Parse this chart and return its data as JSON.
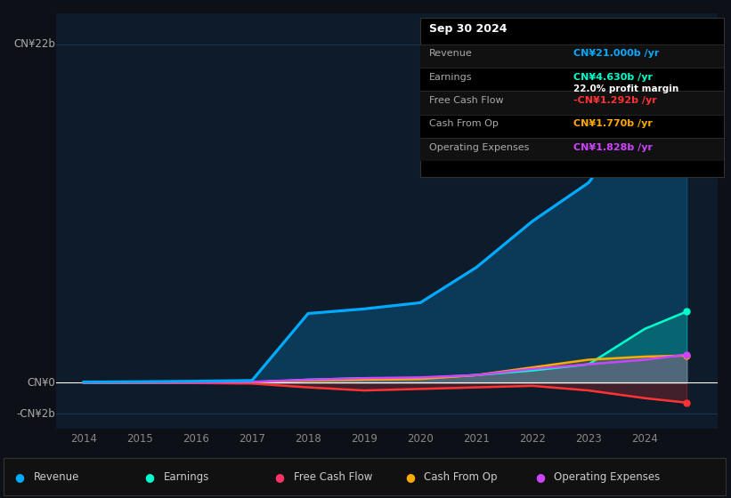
{
  "bg_color": "#0d1117",
  "plot_bg_color": "#0d1b2a",
  "years": [
    2014,
    2015,
    2016,
    2017,
    2018,
    2019,
    2020,
    2021,
    2022,
    2023,
    2024,
    2024.75
  ],
  "revenue": [
    0.05,
    0.07,
    0.1,
    0.15,
    4.5,
    4.8,
    5.2,
    7.5,
    10.5,
    13.0,
    18.0,
    21.0
  ],
  "earnings": [
    0.01,
    0.01,
    0.02,
    0.03,
    0.2,
    0.3,
    0.3,
    0.5,
    0.8,
    1.2,
    3.5,
    4.63
  ],
  "free_cash_flow": [
    0.0,
    -0.01,
    -0.02,
    -0.05,
    -0.3,
    -0.5,
    -0.4,
    -0.3,
    -0.2,
    -0.5,
    -1.0,
    -1.292
  ],
  "cash_from_op": [
    0.01,
    0.02,
    0.03,
    0.05,
    0.15,
    0.2,
    0.25,
    0.5,
    1.0,
    1.5,
    1.7,
    1.77
  ],
  "operating_exp": [
    0.01,
    0.02,
    0.03,
    0.06,
    0.2,
    0.3,
    0.35,
    0.5,
    0.9,
    1.2,
    1.5,
    1.828
  ],
  "revenue_color": "#00aaff",
  "earnings_color": "#00ffcc",
  "fcf_color": "#ff3333",
  "cfo_color": "#ffaa00",
  "opex_color": "#cc44ff",
  "ylim": [
    -3.0,
    24.0
  ],
  "xlim": [
    2013.5,
    2025.3
  ],
  "grid_color": "#1e3a5f",
  "zero_line_color": "#ffffff",
  "y_labels": [
    {
      "label": "CN¥22b",
      "yval": 22
    },
    {
      "label": "CN¥0",
      "yval": 0
    },
    {
      "label": "-CN¥2b",
      "yval": -2
    }
  ],
  "xtick_years": [
    2014,
    2015,
    2016,
    2017,
    2018,
    2019,
    2020,
    2021,
    2022,
    2023,
    2024
  ],
  "info_box": {
    "title": "Sep 30 2024",
    "rows": [
      {
        "label": "Revenue",
        "value": "CN¥21.000b /yr",
        "value_color": "#00aaff",
        "margin": null
      },
      {
        "label": "Earnings",
        "value": "CN¥4.630b /yr",
        "value_color": "#00ffcc",
        "margin": "22.0% profit margin"
      },
      {
        "label": "Free Cash Flow",
        "value": "-CN¥1.292b /yr",
        "value_color": "#ff3333",
        "margin": null
      },
      {
        "label": "Cash From Op",
        "value": "CN¥1.770b /yr",
        "value_color": "#ffaa00",
        "margin": null
      },
      {
        "label": "Operating Expenses",
        "value": "CN¥1.828b /yr",
        "value_color": "#cc44ff",
        "margin": null
      }
    ]
  },
  "legend": [
    {
      "label": "Revenue",
      "color": "#00aaff"
    },
    {
      "label": "Earnings",
      "color": "#00ffcc"
    },
    {
      "label": "Free Cash Flow",
      "color": "#ff3366"
    },
    {
      "label": "Cash From Op",
      "color": "#ffaa00"
    },
    {
      "label": "Operating Expenses",
      "color": "#cc44ff"
    }
  ]
}
